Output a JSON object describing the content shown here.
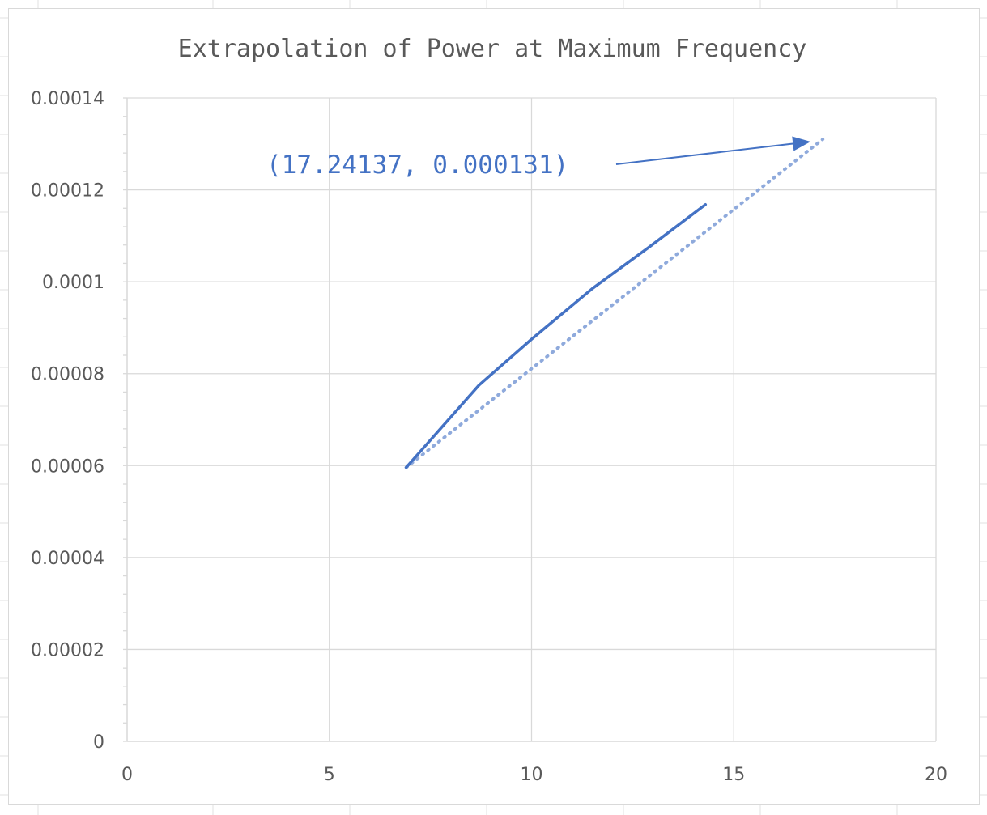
{
  "colors": {
    "series": "#4472c4",
    "trendline": "#8faadc",
    "gridline": "#d9d9d9",
    "axis_text": "#595959",
    "sheet_grid": "#e0e0e0"
  },
  "chart_data": {
    "type": "line",
    "title": "Extrapolation of Power at Maximum Frequency",
    "xlabel": "",
    "ylabel": "",
    "xlim": [
      0,
      20
    ],
    "ylim": [
      0,
      0.00014
    ],
    "x_ticks": [
      "0",
      "5",
      "10",
      "15",
      "20"
    ],
    "y_ticks": [
      "0",
      "0.00002",
      "0.00004",
      "0.00006",
      "0.00008",
      "0.0001",
      "0.00012",
      "0.00014"
    ],
    "grid": true,
    "legend": "none",
    "series": [
      {
        "x": [
          6.9,
          8.7,
          10.0,
          11.5,
          12.9,
          14.3
        ],
        "y": [
          5.96e-05,
          7.75e-05,
          8.75e-05,
          9.85e-05,
          0.0001075,
          0.0001168
        ]
      }
    ],
    "trendline": {
      "style": "dotted",
      "x": [
        6.9,
        17.2
      ],
      "y": [
        5.96e-05,
        0.000131
      ]
    },
    "annotation": {
      "text": "(17.24137, 0.000131)",
      "arrow_target": [
        16.9,
        0.0001305
      ]
    }
  }
}
